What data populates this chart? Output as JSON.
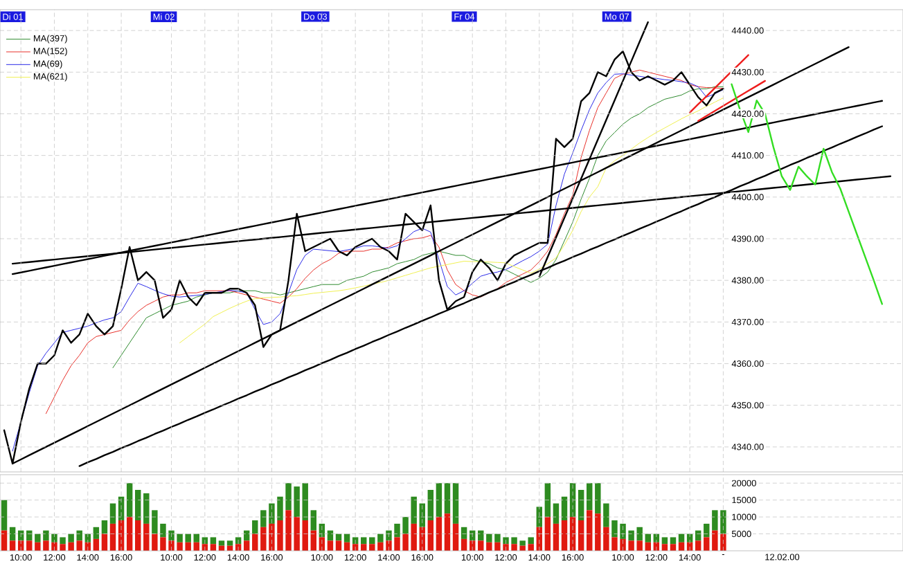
{
  "chart_data": [
    {
      "type": "line",
      "categories": [
        null,
        null,
        null,
        null,
        null,
        null,
        null,
        null,
        null,
        null,
        null,
        null,
        null,
        null,
        null,
        null,
        null,
        null,
        null,
        null,
        null,
        null,
        null,
        null,
        null,
        null,
        null,
        null,
        null,
        null,
        null,
        null,
        null,
        null,
        null,
        null,
        null,
        null,
        null,
        null,
        null,
        null,
        null,
        null,
        null,
        null,
        null,
        null,
        null,
        null,
        null,
        null,
        null,
        null,
        null,
        null,
        null,
        null,
        null,
        null,
        null,
        null,
        null,
        null,
        null,
        null,
        null,
        null,
        null,
        null,
        null,
        null,
        null,
        null,
        null,
        null,
        null,
        null,
        null,
        null,
        null,
        null,
        null,
        null,
        null,
        null,
        null,
        null,
        null,
        null,
        null,
        null,
        null,
        null,
        null,
        null,
        null,
        null,
        null,
        null,
        null,
        null,
        null,
        null,
        null,
        null,
        null,
        null
      ],
      "ylim": [
        4334,
        4445
      ],
      "yticks": [
        {
          "value": 4340,
          "label": "4340.00"
        },
        {
          "value": 4350,
          "label": "4350.00"
        },
        {
          "value": 4360,
          "label": "4360.00"
        },
        {
          "value": 4370,
          "label": "4370.00"
        },
        {
          "value": 4380,
          "label": "4380.00"
        },
        {
          "value": 4390,
          "label": "4390.00"
        },
        {
          "value": 4400,
          "label": "4400.00"
        },
        {
          "value": 4410,
          "label": "4410.00"
        },
        {
          "value": 4420,
          "label": "4420.00"
        },
        {
          "value": 4430,
          "label": "4430.00"
        },
        {
          "value": 4440,
          "label": "4440.00"
        }
      ],
      "grid": true,
      "legend": "top left",
      "annotations": [
        "Di 01",
        "Mi 02",
        "Do 03",
        "Fr 04",
        "Mo 07"
      ],
      "series": [
        {
          "name": "MA(397)",
          "color": "#2e8b2e",
          "values": [
            null,
            null,
            null,
            null,
            null,
            null,
            null,
            null,
            null,
            null,
            null,
            null,
            null,
            4359,
            4362,
            4365,
            4368,
            4371,
            4372,
            4373,
            4374,
            4374.5,
            4375,
            4376,
            4376.5,
            4377,
            4377,
            4377,
            4377.5,
            4377.5,
            4377.5,
            4377,
            4377,
            4376.5,
            4377,
            4377.5,
            4378,
            4378.5,
            4379,
            4379,
            4379,
            4380,
            4380.5,
            4381,
            4382,
            4382.5,
            4383,
            4384,
            4384.5,
            4385,
            4386,
            4386.5,
            4387,
            4386.5,
            4386,
            4386,
            4385,
            4384.5,
            4384,
            4383,
            4382.5,
            4381.5,
            4380.5,
            4379.5,
            4380.5,
            4382,
            4385,
            4389.5,
            4394,
            4399.5,
            4404.5,
            4410,
            4413.5,
            4415.5,
            4417.5,
            4419,
            4420,
            4421.5,
            4422.5,
            4423.5,
            4424,
            4424.5,
            4425.5,
            4426,
            4426,
            4426.5,
            4426.5,
            null,
            null,
            null,
            null,
            null,
            null,
            null,
            null,
            null,
            null,
            null,
            null,
            null,
            null,
            null,
            null,
            null,
            null,
            null,
            null,
            null
          ]
        },
        {
          "name": "MA(152)",
          "color": "#e8302a",
          "values": [
            null,
            null,
            null,
            null,
            null,
            4348,
            4352,
            4356,
            4359.5,
            4362,
            4365,
            4366.5,
            4367,
            4367.5,
            4368,
            4370.5,
            4372.5,
            4374,
            4375,
            4376,
            4376.5,
            4376.5,
            4377,
            4377,
            4377.5,
            4377.5,
            4377.5,
            4377.5,
            4377,
            4376.5,
            4376,
            4375.5,
            4375,
            4374.5,
            4376,
            4378,
            4380.5,
            4382.5,
            4384,
            4385,
            4386.5,
            4387,
            4387,
            4387,
            4387.5,
            4387.5,
            4388,
            4389,
            4389.5,
            4390,
            4390.2,
            4390.8,
            4388,
            4382.5,
            4379,
            4377.5,
            4376.5,
            4376,
            4377,
            4378,
            4379.5,
            4380.5,
            4381.5,
            4382.5,
            4384.5,
            4387,
            4391,
            4396,
            4400.5,
            4409.5,
            4416,
            4421.5,
            4425,
            4428.5,
            4429.5,
            4430,
            4430.5,
            4430,
            4429.5,
            4429,
            4428.5,
            4428,
            4427,
            4426.5,
            4426.3,
            4426.2,
            4426.1,
            null,
            null,
            null,
            null,
            null,
            null,
            null,
            null,
            null,
            null,
            null,
            null,
            null,
            null,
            null,
            null,
            null,
            null,
            null,
            null,
            null
          ]
        },
        {
          "name": "MA(69)",
          "color": "#2a2ae8",
          "values": [
            null,
            4339,
            4346,
            4353,
            4359.5,
            4362.5,
            4365,
            4367.5,
            4368,
            4368.5,
            4369,
            4369.8,
            4370.5,
            4371,
            4372.5,
            4376,
            4379.3,
            4378.5,
            4377.6,
            4376.8,
            4376.2,
            4376,
            4376.2,
            4376.4,
            4376.6,
            4377,
            4377.3,
            4377.6,
            4377.4,
            4377,
            4373,
            4369.4,
            4370,
            4372,
            4377,
            4382.6,
            4386,
            4387.5,
            4387.3,
            4387.1,
            4386.9,
            4387.3,
            4387.7,
            4388.3,
            4388.3,
            4388,
            4387.7,
            4388.3,
            4390,
            4391.7,
            4392.5,
            4391.6,
            4385,
            4378.5,
            4376.5,
            4377.5,
            4379.3,
            4381,
            4381.6,
            4382,
            4382.6,
            4383.6,
            4384.7,
            4385.7,
            4387,
            4388.7,
            4398,
            4405.5,
            4410.6,
            4416,
            4421,
            4425,
            4427.5,
            4429.5,
            4429.6,
            4429.3,
            4429,
            4428.7,
            4428.5,
            4428.2,
            4428,
            4427.7,
            4427.4,
            4426.5,
            4424,
            4424.8,
            4425.8,
            null,
            null,
            null,
            null,
            null,
            null,
            null,
            null,
            null,
            null,
            null,
            null,
            null,
            null,
            null,
            null,
            null,
            null,
            null,
            null,
            null
          ]
        },
        {
          "name": "MA(621)",
          "color": "#f0f050",
          "values": [
            null,
            null,
            null,
            null,
            null,
            null,
            null,
            null,
            null,
            null,
            null,
            null,
            null,
            null,
            null,
            null,
            null,
            null,
            null,
            null,
            null,
            4365,
            4366.5,
            4368,
            4369.5,
            4371.3,
            4372.3,
            4373.3,
            4374.2,
            4375,
            4375.6,
            4375.8,
            4375.9,
            4376,
            4376.2,
            4376.3,
            4376.6,
            4376.9,
            4377.1,
            4377.3,
            4377.5,
            4377.8,
            4378.2,
            4378.6,
            4379.1,
            4379.5,
            4380,
            4380.6,
            4381.2,
            4381.8,
            4382.4,
            4383,
            4383.4,
            4383.8,
            4384.2,
            4384.6,
            4384.5,
            4384.5,
            4384.4,
            4384.3,
            4384.2,
            4383.3,
            4382.5,
            4381.7,
            4382.7,
            4384,
            4385.4,
            4388.5,
            4392,
            4396.5,
            4400,
            4402.5,
            4407,
            4408.7,
            4410,
            4411.5,
            4413,
            4414.3,
            4415.5,
            4416.6,
            4417.7,
            4418.8,
            4419.8,
            4420.7,
            4421.8,
            4422.8,
            4423.8,
            null,
            null,
            null,
            null,
            null,
            null,
            null,
            null,
            null,
            null,
            null,
            null,
            null,
            null,
            null,
            null,
            null,
            null,
            null,
            null,
            null
          ]
        },
        {
          "color": "#000000",
          "values": [
            4344,
            4336,
            4346,
            4354,
            4360,
            4360,
            4362,
            4368,
            4365,
            4367,
            4372,
            4369,
            4367,
            4369,
            4378,
            4388,
            4380,
            4382,
            4380,
            4371,
            4373,
            4380,
            4376,
            4374,
            4377,
            4377,
            4377,
            4378,
            4378,
            4377,
            4374,
            4364,
            4367,
            4368,
            4380,
            4396,
            4387,
            4388,
            4389,
            4390,
            4387,
            4386,
            4388,
            4389,
            4390,
            4388,
            4387,
            4385,
            4396,
            4394,
            4392,
            4398,
            4380,
            4373,
            4375,
            4376,
            4382,
            4385,
            4383,
            4380,
            4384,
            4386,
            4387,
            4388,
            4389,
            4389,
            4414,
            4412,
            4414,
            4423,
            4425,
            4430,
            4429,
            4433,
            4435,
            4430,
            4428,
            4429,
            4428,
            4427,
            4428,
            4430,
            4427,
            4424,
            4422,
            4425,
            4426,
            null,
            null,
            null,
            null,
            null,
            null,
            null,
            null,
            null,
            null,
            null,
            null,
            null,
            null,
            null,
            null,
            null,
            null,
            null,
            null,
            null
          ]
        },
        {
          "color": "#000000",
          "values": [
            null,
            4381.5,
            4381.9,
            4382.3,
            4382.7,
            4383.1,
            4383.5,
            4383.9,
            4384.3,
            4384.7,
            4385.1,
            4385.5,
            4385.9,
            4386.3,
            4386.7,
            4387.1,
            4387.5,
            4387.9,
            4388.3,
            4388.7,
            4389.1,
            4389.5,
            4389.9,
            4390.3,
            4390.7,
            4391.1,
            4391.5,
            4391.9,
            4392.3,
            4392.7,
            4393.1,
            4393.5,
            4393.9,
            4394.3,
            4394.7,
            4395.1,
            4395.5,
            4395.9,
            4396.3,
            4396.7,
            4397.1,
            4397.5,
            4397.9,
            4398.3,
            4398.7,
            4399.1,
            4399.5,
            4399.9,
            4400.3,
            4400.7,
            4401.1,
            4401.5,
            4401.9,
            4402.3,
            4402.7,
            4403.1,
            4403.5,
            4403.9,
            4404.3,
            4404.7,
            4405.1,
            4405.5,
            4405.9,
            4406.3,
            4406.7,
            4407.1,
            4407.5,
            4407.9,
            4408.3,
            4408.7,
            4409.1,
            4409.5,
            4409.9,
            4410.3,
            4410.7,
            4411.1,
            4411.5,
            4411.9,
            4412.3,
            4412.7,
            4413.1,
            4413.5,
            4413.9,
            4414.3,
            4414.7,
            4415.1,
            4415.5,
            4415.9,
            4416.3,
            4416.7,
            4417.1,
            4417.5,
            4417.9,
            4418.3,
            4418.7,
            4419.1,
            4419.5,
            4419.9,
            4420.3,
            4420.7,
            4421.1,
            4421.5,
            4421.9,
            4422.3,
            4422.7,
            4423.1,
            null,
            null
          ]
        },
        {
          "color": "#000000",
          "values": [
            null,
            4384.0,
            4384.2,
            4384.4,
            4384.6,
            4384.8,
            4385.0,
            4385.2,
            4385.4,
            4385.6,
            4385.8,
            4386.0,
            4386.2,
            4386.4,
            4386.6,
            4386.8,
            4387.0,
            4387.2,
            4387.4,
            4387.6,
            4387.8,
            4388.0,
            4388.2,
            4388.4,
            4388.6,
            4388.8,
            4389.0,
            4389.2,
            4389.4,
            4389.6,
            4389.8,
            4390.0,
            4390.2,
            4390.4,
            4390.6,
            4390.8,
            4391.0,
            4391.2,
            4391.4,
            4391.6,
            4391.8,
            4392.0,
            4392.2,
            4392.4,
            4392.6,
            4392.8,
            4393.0,
            4393.2,
            4393.4,
            4393.6,
            4393.8,
            4394.0,
            4394.2,
            4394.4,
            4394.6,
            4394.8,
            4395.0,
            4395.2,
            4395.4,
            4395.6,
            4395.8,
            4396.0,
            4396.2,
            4396.4,
            4396.6,
            4396.8,
            4397.0,
            4397.2,
            4397.4,
            4397.6,
            4397.8,
            4398.0,
            4398.2,
            4398.4,
            4398.6,
            4398.8,
            4399.0,
            4399.2,
            4399.4,
            4399.6,
            4399.8,
            4400.0,
            4400.2,
            4400.4,
            4400.6,
            4400.8,
            4401.0,
            4401.2,
            4401.4,
            4401.6,
            4401.8,
            4402.0,
            4402.2,
            4402.4,
            4402.6,
            4402.8,
            4403.0,
            4403.2,
            4403.4,
            4403.6,
            4403.8,
            4404.0,
            4404.2,
            4404.4,
            4404.6,
            4404.8,
            4405.0,
            null
          ]
        },
        {
          "color": "#000000",
          "values": [
            null,
            4336,
            4337,
            4338,
            4339,
            4340,
            4341,
            4342,
            4343,
            4344,
            4345,
            4346,
            4347,
            4348,
            4349,
            4350,
            4351,
            4352,
            4353,
            4354,
            4355,
            4356,
            4357,
            4358,
            4359,
            4360,
            4361,
            4362,
            4363,
            4364,
            4365,
            4366,
            4367,
            4368,
            4369,
            4370,
            4371,
            4372,
            4373,
            4374,
            4375,
            4376,
            4377,
            4378,
            4379,
            4380,
            4381,
            4382,
            4383,
            4384,
            4385,
            4386,
            4387,
            4388,
            4389,
            4390,
            4391,
            4392,
            4393,
            4394,
            4395,
            4396,
            4397,
            4398,
            4399,
            4400,
            4401,
            4402,
            4403,
            4404,
            4405,
            4406,
            4407,
            4408,
            4409,
            4410,
            4411,
            4412,
            4413,
            4414,
            4415,
            4416,
            4417,
            4418,
            4419,
            4420,
            4421,
            4422,
            4423,
            4424,
            4425,
            4426,
            4427,
            4428,
            4429,
            4430,
            4431,
            4432,
            4433,
            4434,
            4435,
            4436,
            null,
            null,
            null,
            null,
            null,
            null
          ]
        },
        {
          "color": "#000000",
          "values": [
            null,
            null,
            null,
            null,
            null,
            null,
            null,
            null,
            null,
            4335.4,
            4336.3,
            4337.1,
            4338.0,
            4338.8,
            4339.7,
            4340.5,
            4341.4,
            4342.2,
            4343.1,
            4343.9,
            4344.8,
            4345.6,
            4346.5,
            4347.3,
            4348.2,
            4349.0,
            4349.9,
            4350.7,
            4351.6,
            4352.4,
            4353.3,
            4354.1,
            4355.0,
            4355.8,
            4356.7,
            4357.5,
            4358.4,
            4359.2,
            4360.1,
            4360.9,
            4361.8,
            4362.6,
            4363.5,
            4364.3,
            4365.2,
            4366.0,
            4366.9,
            4367.7,
            4368.6,
            4369.4,
            4370.3,
            4371.1,
            4372.0,
            4372.8,
            4373.7,
            4374.5,
            4375.4,
            4376.2,
            4377.1,
            4377.9,
            4378.8,
            4379.6,
            4380.5,
            4381.3,
            4382.2,
            4383.0,
            4383.9,
            4384.7,
            4385.6,
            4386.4,
            4387.3,
            4388.1,
            4389.0,
            4389.8,
            4390.7,
            4391.5,
            4392.4,
            4393.2,
            4394.1,
            4394.9,
            4395.8,
            4396.6,
            4397.5,
            4398.3,
            4399.2,
            4400.0,
            4400.9,
            4401.7,
            4402.6,
            4403.4,
            4404.3,
            4405.1,
            4406.0,
            4406.8,
            4407.7,
            4408.5,
            4409.4,
            4410.2,
            4411.1,
            4411.9,
            4412.8,
            4413.6,
            4414.5,
            4415.3,
            4416.2,
            4417.0,
            null,
            null
          ]
        },
        {
          "color": "#000000",
          "values": [
            null,
            null,
            null,
            null,
            null,
            null,
            null,
            null,
            null,
            null,
            null,
            null,
            null,
            null,
            null,
            null,
            null,
            null,
            null,
            null,
            null,
            null,
            null,
            null,
            null,
            null,
            null,
            null,
            null,
            null,
            null,
            null,
            null,
            null,
            null,
            null,
            null,
            null,
            null,
            null,
            null,
            null,
            null,
            null,
            null,
            null,
            null,
            null,
            null,
            null,
            null,
            null,
            null,
            null,
            null,
            null,
            null,
            null,
            null,
            null,
            null,
            null,
            null,
            null,
            4380.9,
            4385.6,
            4390.3,
            4395.0,
            4399.7,
            4404.4,
            4409.1,
            4413.8,
            4418.5,
            4423.2,
            4427.9,
            4432.6,
            4437.3,
            4442.0,
            null,
            null,
            null,
            null,
            null,
            null,
            null,
            null,
            null,
            null,
            null,
            null,
            null,
            null,
            null,
            null,
            null,
            null,
            null,
            null,
            null,
            null,
            null,
            null,
            null,
            null,
            null,
            null,
            null,
            null
          ]
        },
        {
          "color": "#ee1c1c",
          "values": [
            null,
            null,
            null,
            null,
            null,
            null,
            null,
            null,
            null,
            null,
            null,
            null,
            null,
            null,
            null,
            null,
            null,
            null,
            null,
            null,
            null,
            null,
            null,
            null,
            null,
            null,
            null,
            null,
            null,
            null,
            null,
            null,
            null,
            null,
            null,
            null,
            null,
            null,
            null,
            null,
            null,
            null,
            null,
            null,
            null,
            null,
            null,
            null,
            null,
            null,
            null,
            null,
            null,
            null,
            null,
            null,
            null,
            null,
            null,
            null,
            null,
            null,
            null,
            null,
            null,
            null,
            null,
            null,
            null,
            null,
            null,
            null,
            null,
            null,
            null,
            null,
            null,
            null,
            null,
            null,
            null,
            null,
            4420.3,
            4422.3,
            4424.2,
            4426.2,
            4428.2,
            4430.2,
            4432.1,
            4434.1,
            null,
            null,
            null,
            null,
            null,
            null,
            null,
            null,
            null,
            null,
            null,
            null,
            null,
            null,
            null,
            null,
            null,
            null
          ]
        },
        {
          "color": "#ee1c1c",
          "values": [
            null,
            null,
            null,
            null,
            null,
            null,
            null,
            null,
            null,
            null,
            null,
            null,
            null,
            null,
            null,
            null,
            null,
            null,
            null,
            null,
            null,
            null,
            null,
            null,
            null,
            null,
            null,
            null,
            null,
            null,
            null,
            null,
            null,
            null,
            null,
            null,
            null,
            null,
            null,
            null,
            null,
            null,
            null,
            null,
            null,
            null,
            null,
            null,
            null,
            null,
            null,
            null,
            null,
            null,
            null,
            null,
            null,
            null,
            null,
            null,
            null,
            null,
            null,
            null,
            null,
            null,
            null,
            null,
            null,
            null,
            null,
            null,
            null,
            null,
            null,
            null,
            null,
            null,
            null,
            null,
            null,
            null,
            null,
            4418.3,
            4419.5,
            4420.7,
            4421.9,
            4423.1,
            4424.3,
            4425.5,
            4426.7,
            4427.9,
            null,
            null,
            null,
            null,
            null,
            null,
            null,
            null,
            null,
            null,
            null,
            null,
            null,
            null,
            null,
            null
          ]
        },
        {
          "color": "#33dd22",
          "values": [
            null,
            null,
            null,
            null,
            null,
            null,
            null,
            null,
            null,
            null,
            null,
            null,
            null,
            null,
            null,
            null,
            null,
            null,
            null,
            null,
            null,
            null,
            null,
            null,
            null,
            null,
            null,
            null,
            null,
            null,
            null,
            null,
            null,
            null,
            null,
            null,
            null,
            null,
            null,
            null,
            null,
            null,
            null,
            null,
            null,
            null,
            null,
            null,
            null,
            null,
            null,
            null,
            null,
            null,
            null,
            null,
            null,
            null,
            null,
            null,
            null,
            null,
            null,
            null,
            null,
            null,
            null,
            null,
            null,
            null,
            null,
            null,
            null,
            null,
            null,
            null,
            null,
            null,
            null,
            null,
            null,
            null,
            null,
            null,
            null,
            null,
            null,
            4427.1,
            4421,
            4415.6,
            4423.2,
            4420,
            4412,
            4405,
            4401.7,
            4407.3,
            4405,
            4403,
            4411.6,
            4406,
            4402,
            4396.5,
            4391,
            4385.5,
            4380,
            4374.3,
            null,
            null
          ]
        }
      ]
    },
    {
      "type": "bar",
      "stacked": true,
      "categories": [
        null,
        null,
        "10:00",
        null,
        null,
        null,
        "12:00",
        null,
        null,
        null,
        "14:00",
        null,
        null,
        null,
        "16:00",
        null,
        null,
        null,
        null,
        null,
        "10:00",
        null,
        null,
        null,
        "12:00",
        null,
        null,
        null,
        "14:00",
        null,
        null,
        null,
        "16:00",
        null,
        null,
        null,
        null,
        null,
        "10:00",
        null,
        null,
        null,
        "12:00",
        null,
        null,
        null,
        "14:00",
        null,
        null,
        null,
        "16:00",
        null,
        null,
        null,
        null,
        null,
        "10:00",
        null,
        null,
        null,
        "12:00",
        null,
        null,
        null,
        "14:00",
        null,
        null,
        null,
        "16:00",
        null,
        null,
        null,
        null,
        null,
        "10:00",
        null,
        null,
        null,
        "12:00",
        null,
        null,
        null,
        "14:00",
        null,
        null,
        null,
        "-",
        null,
        null,
        null,
        null,
        null,
        null,
        null,
        null,
        null,
        null,
        null,
        null,
        null,
        null,
        null,
        null,
        null,
        null,
        null,
        null,
        null
      ],
      "ylim": [
        0,
        22500
      ],
      "yticks": [
        5000,
        10000,
        15000,
        20000
      ],
      "grid": true,
      "annotations": [
        "12.02.00"
      ],
      "series": [
        {
          "color": "#e01a10",
          "values": [
            6000,
            3000,
            3000,
            3000,
            2500,
            3000,
            2500,
            2000,
            2500,
            3000,
            2500,
            3500,
            5000,
            8000,
            9000,
            10000,
            9000,
            8000,
            5000,
            4000,
            3000,
            2500,
            2500,
            2500,
            2000,
            2000,
            1500,
            1500,
            2000,
            3000,
            5000,
            7000,
            8000,
            9000,
            12000,
            10000,
            9000,
            6000,
            4000,
            3000,
            3000,
            2500,
            2000,
            2000,
            2000,
            2500,
            3000,
            4000,
            5000,
            8000,
            7000,
            9000,
            10000,
            11000,
            8000,
            3500,
            3000,
            3000,
            2500,
            2500,
            2000,
            2000,
            1500,
            2000,
            7000,
            10000,
            8000,
            9000,
            10000,
            9000,
            12000,
            11000,
            7000,
            4000,
            3500,
            3000,
            3000,
            2500,
            2500,
            2000,
            2000,
            2500,
            2500,
            3000,
            4000,
            6000,
            5000,
            null,
            null,
            null,
            null,
            null,
            null,
            null,
            null,
            null,
            null,
            null,
            null,
            null,
            null,
            null,
            null,
            null,
            null,
            null,
            null,
            null
          ]
        },
        {
          "color": "#2e8b20",
          "values": [
            9000,
            4000,
            3000,
            3000,
            2500,
            3000,
            2500,
            2000,
            2500,
            3000,
            2500,
            3500,
            4000,
            6000,
            7000,
            10000,
            9000,
            9000,
            7000,
            4000,
            3000,
            2500,
            2500,
            2500,
            2000,
            2000,
            1500,
            1500,
            2000,
            3000,
            4000,
            5000,
            6000,
            7000,
            8000,
            9000,
            11000,
            6000,
            4000,
            3000,
            2000,
            2500,
            2000,
            2000,
            2000,
            2500,
            3000,
            4000,
            5000,
            8000,
            7000,
            9000,
            10000,
            9000,
            12000,
            3500,
            3000,
            3000,
            2500,
            2500,
            2000,
            2000,
            1500,
            2000,
            6000,
            10000,
            6000,
            7000,
            10000,
            9000,
            8000,
            9000,
            7000,
            5000,
            4500,
            3000,
            4000,
            2500,
            2500,
            2000,
            2000,
            2500,
            2500,
            3000,
            4000,
            6000,
            7000,
            null,
            null,
            null,
            null,
            null,
            null,
            null,
            null,
            null,
            null,
            null,
            null,
            null,
            null,
            null,
            null,
            null,
            null,
            null,
            null,
            null
          ]
        }
      ]
    }
  ]
}
